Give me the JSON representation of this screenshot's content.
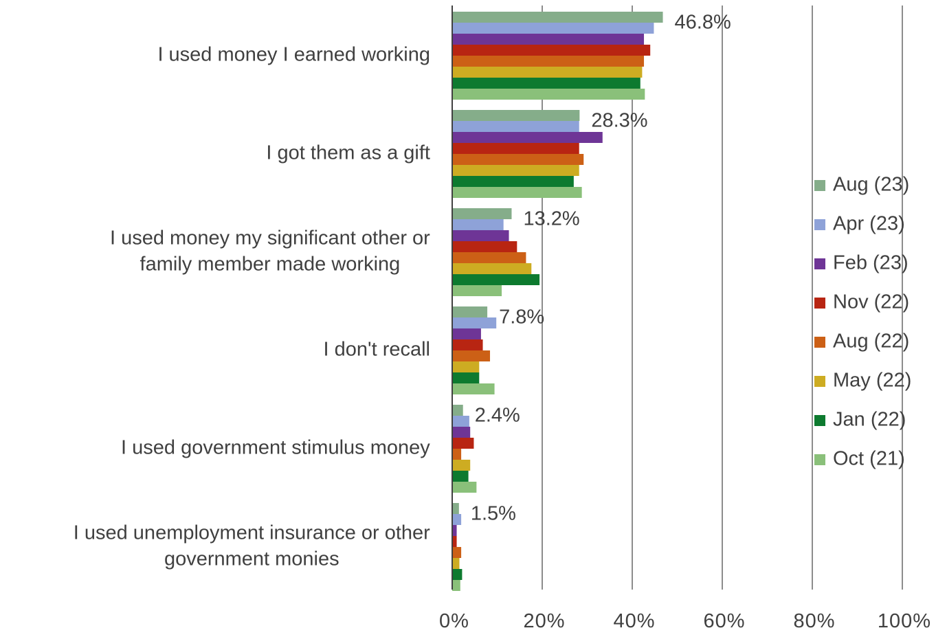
{
  "chart_data": {
    "type": "bar",
    "orientation": "horizontal",
    "title": "",
    "xlabel": "",
    "ylabel": "",
    "xlim": [
      0,
      100
    ],
    "x_ticks": [
      0,
      20,
      40,
      60,
      80,
      100
    ],
    "x_tick_labels": [
      "0%",
      "20%",
      "40%",
      "60%",
      "80%",
      "100%"
    ],
    "grid": "vertical major gridlines",
    "legend_position": "right",
    "categories": [
      [
        "I used money I earned working"
      ],
      [
        "I got them as a gift"
      ],
      [
        "I used money my significant other or",
        "family member made working"
      ],
      [
        "I don't recall"
      ],
      [
        "I used government stimulus money"
      ],
      [
        "I used unemployment insurance or other",
        "government monies"
      ]
    ],
    "data_labels": [
      "46.8%",
      "28.3%",
      "13.2%",
      "7.8%",
      "2.4%",
      "1.5%"
    ],
    "series": [
      {
        "name": "Aug (23)",
        "color": "#85ad8a",
        "values": [
          46.8,
          28.3,
          13.2,
          7.8,
          2.4,
          1.5
        ]
      },
      {
        "name": "Apr (23)",
        "color": "#8ea2d8",
        "values": [
          44.8,
          28.2,
          11.4,
          9.8,
          3.8,
          2.0
        ]
      },
      {
        "name": "Feb (23)",
        "color": "#6e3596",
        "values": [
          42.6,
          33.4,
          12.6,
          6.4,
          4.0,
          1.0
        ]
      },
      {
        "name": "Nov (22)",
        "color": "#b82512",
        "values": [
          44.0,
          28.2,
          14.4,
          6.8,
          4.8,
          1.0
        ]
      },
      {
        "name": "Aug (22)",
        "color": "#cc6016",
        "values": [
          42.6,
          29.2,
          16.4,
          8.4,
          2.0,
          2.0
        ]
      },
      {
        "name": "May (22)",
        "color": "#cdac22",
        "values": [
          42.2,
          28.2,
          17.6,
          6.0,
          4.0,
          1.6
        ]
      },
      {
        "name": "Jan (22)",
        "color": "#0d7a2f",
        "values": [
          41.8,
          27.0,
          19.4,
          6.0,
          3.6,
          2.2
        ]
      },
      {
        "name": "Oct (21)",
        "color": "#8ac07a",
        "values": [
          42.8,
          28.8,
          11.0,
          9.4,
          5.4,
          1.8
        ]
      }
    ]
  }
}
